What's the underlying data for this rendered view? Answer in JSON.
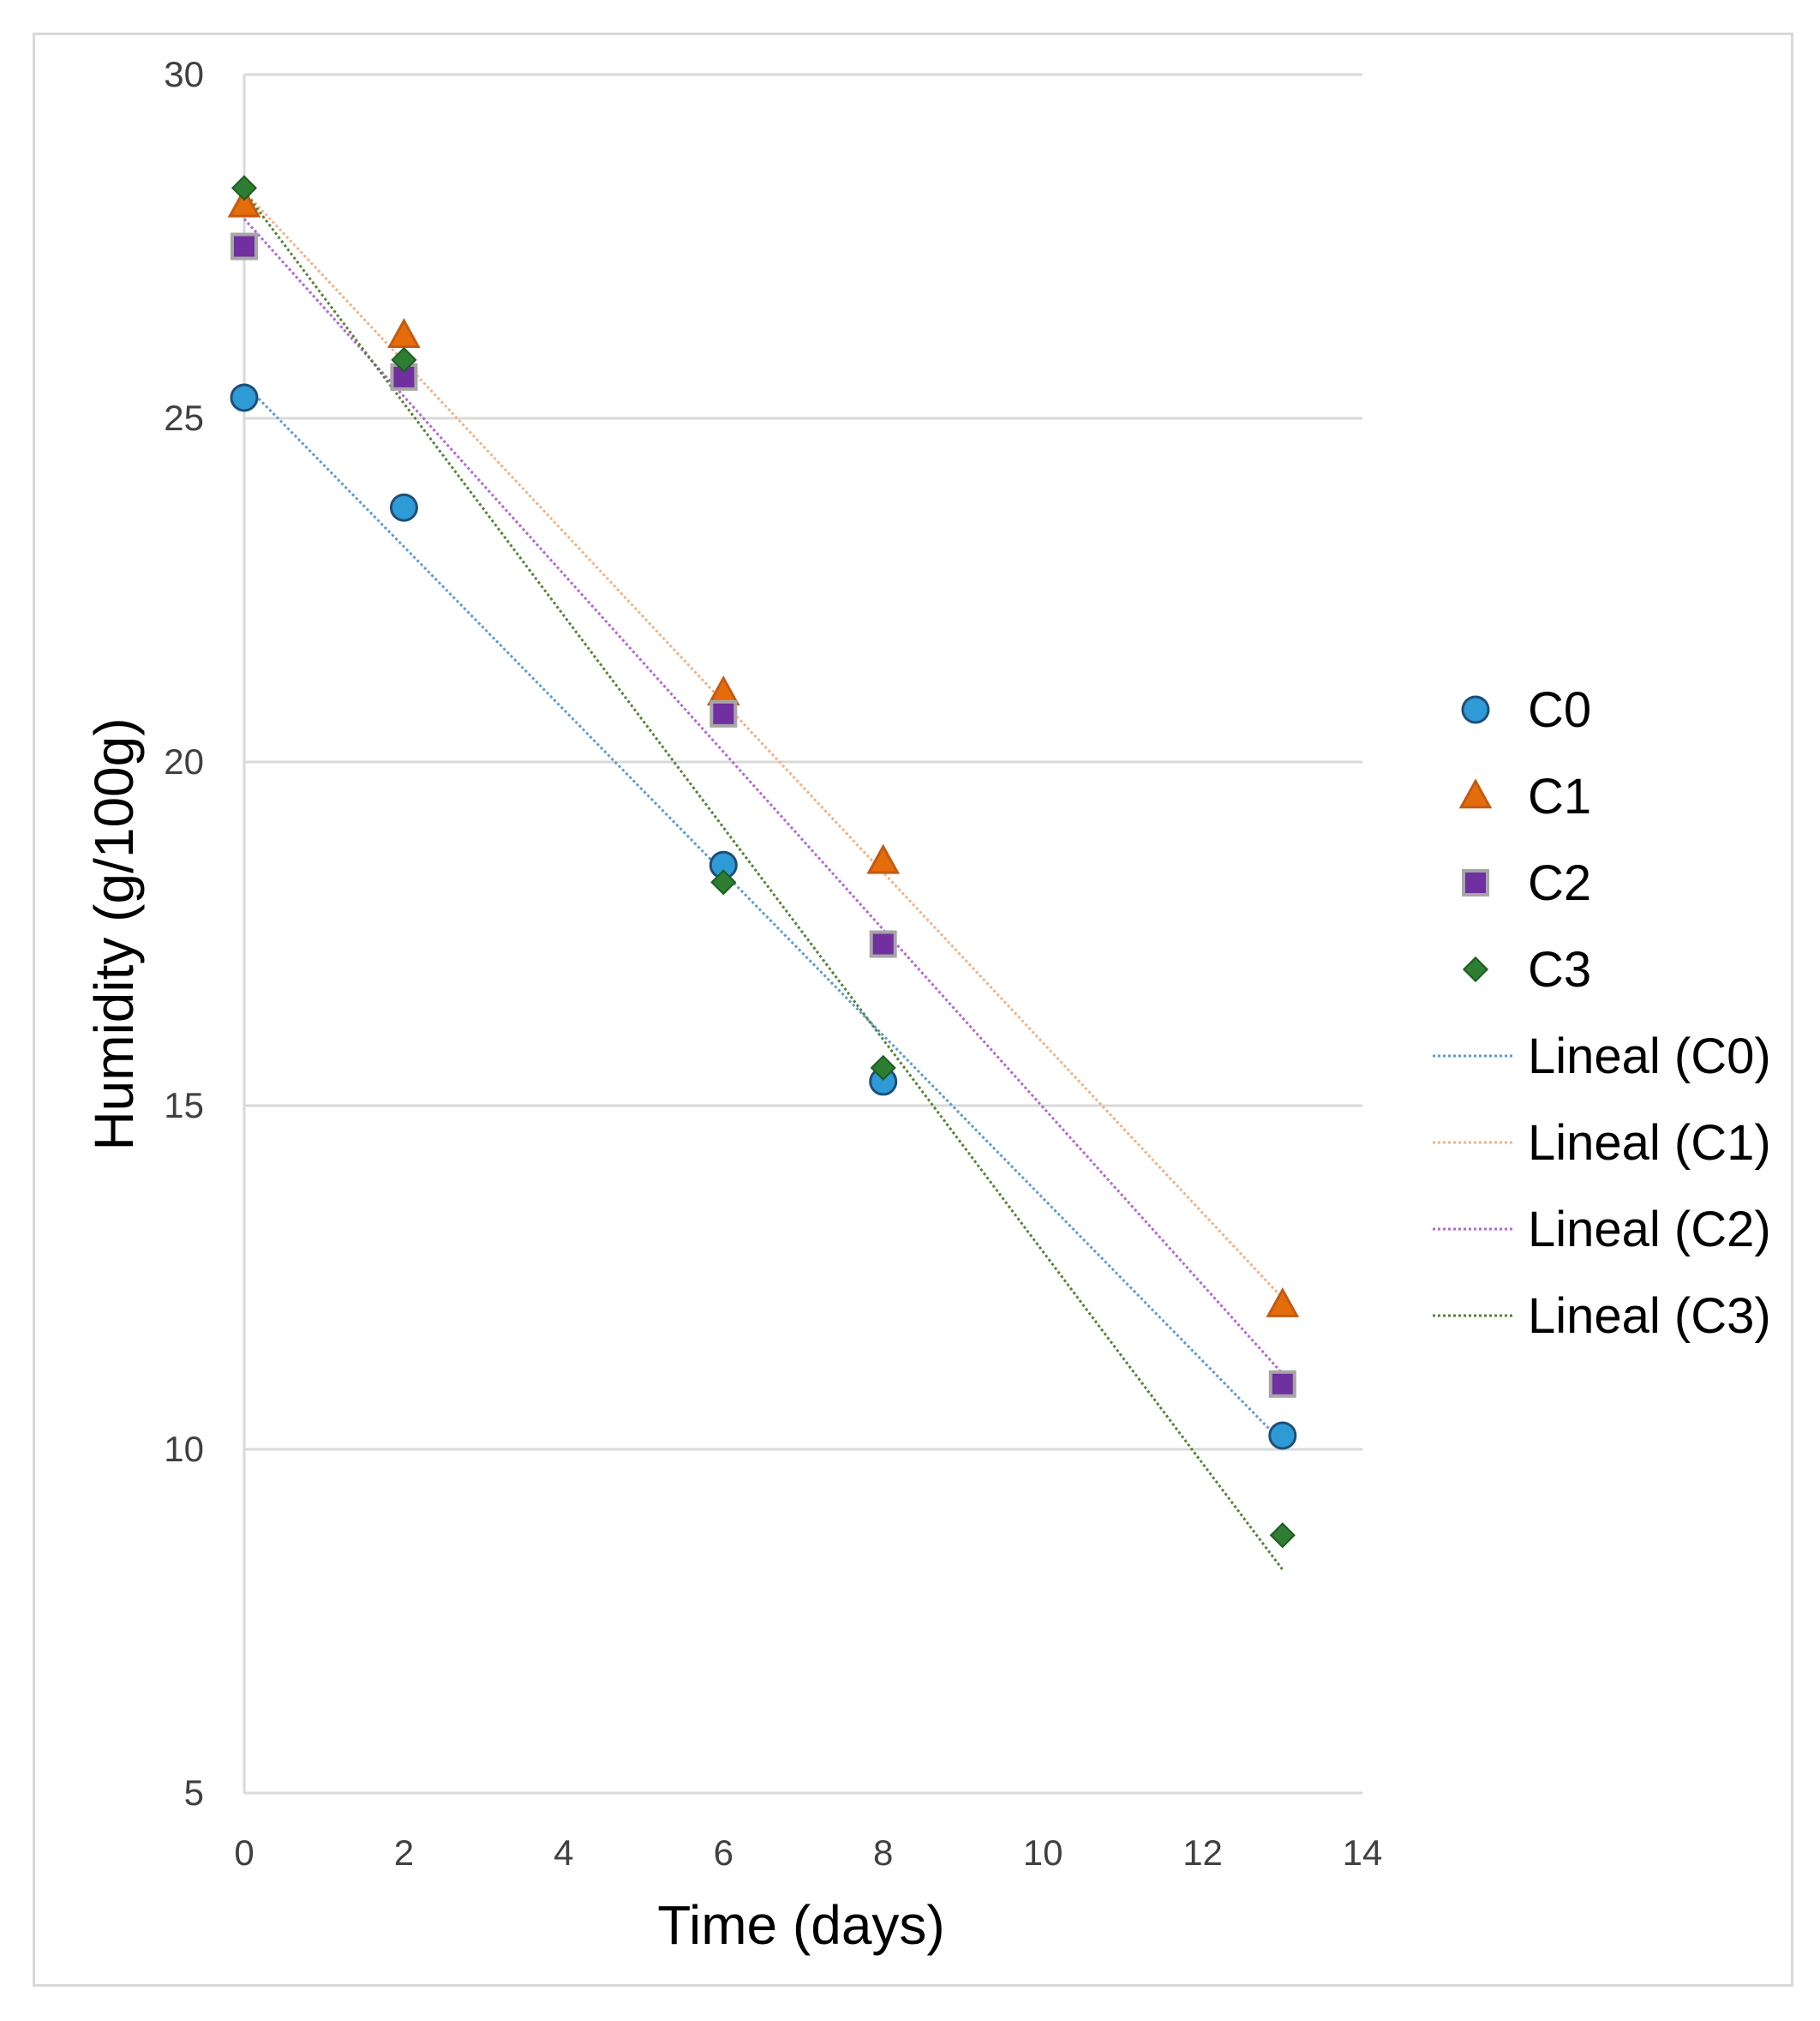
{
  "chart_data": {
    "type": "scatter",
    "title": "",
    "xlabel": "Time (days)",
    "ylabel": "Humidity (g/100g)",
    "xlim": [
      0,
      14
    ],
    "ylim": [
      5,
      30
    ],
    "xticks": [
      "0",
      "2",
      "4",
      "6",
      "8",
      "10",
      "12",
      "14"
    ],
    "yticks": [
      "5",
      "10",
      "15",
      "20",
      "25",
      "30"
    ],
    "grid": "horizontal",
    "legend_position": "right",
    "x": [
      0,
      2,
      6,
      8,
      13
    ],
    "series": [
      {
        "name": "C0",
        "marker": "circle",
        "color": "#2E9BD6",
        "edge": "#1F4E79",
        "values": [
          25.3,
          23.7,
          18.5,
          15.35,
          10.2
        ]
      },
      {
        "name": "C1",
        "marker": "triangle",
        "color": "#E46C0A",
        "edge": "#C55A11",
        "values": [
          28.1,
          26.2,
          21.0,
          18.55,
          12.1
        ]
      },
      {
        "name": "C2",
        "marker": "square",
        "color": "#7030A0",
        "edge": "#A6A6A6",
        "values": [
          27.5,
          25.6,
          20.7,
          17.35,
          10.95
        ]
      },
      {
        "name": "C3",
        "marker": "diamond",
        "color": "#2E7D32",
        "edge": "#1B5E20",
        "values": [
          28.35,
          25.85,
          18.25,
          15.55,
          8.75
        ]
      }
    ],
    "trendlines": [
      {
        "name": "Lineal (C0)",
        "color": "#5B9BD5",
        "start": [
          0,
          25.5
        ],
        "end": [
          13,
          10.1
        ]
      },
      {
        "name": "Lineal (C1)",
        "color": "#F4B183",
        "start": [
          0,
          28.3
        ],
        "end": [
          13,
          12.2
        ]
      },
      {
        "name": "Lineal (C2)",
        "color": "#B565D6",
        "start": [
          0,
          27.9
        ],
        "end": [
          13,
          11.1
        ]
      },
      {
        "name": "Lineal (C3)",
        "color": "#548235",
        "start": [
          0,
          28.3
        ],
        "end": [
          13,
          8.25
        ]
      }
    ]
  }
}
